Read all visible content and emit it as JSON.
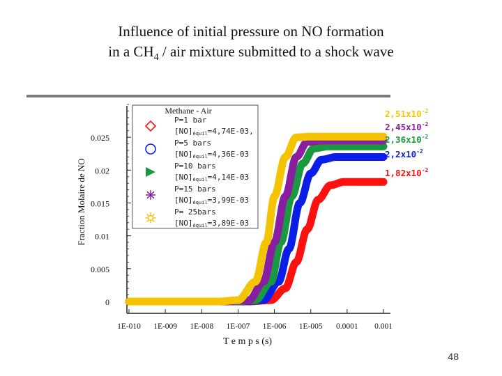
{
  "title_line1": "Influence of initial pressure on NO formation",
  "title_line2_pre": "in a CH",
  "title_line2_sub": "4",
  "title_line2_post": " / air mixture submitted to a shock wave",
  "slide_number": "48",
  "chart_data": {
    "type": "line",
    "xscale": "log",
    "xlabel": "T e m p s  (s)",
    "ylabel": "Fraction Molaire de NO",
    "xlim": [
      1e-10,
      0.001
    ],
    "ylim": [
      0,
      0.03
    ],
    "xticks": [
      "1E-010",
      "1E-009",
      "1E-008",
      "1E-007",
      "1E-006",
      "1E-005",
      "0.0001",
      "0.001"
    ],
    "yticks": [
      "0",
      "0.005",
      "0.01",
      "0.015",
      "0.02",
      "0.025"
    ],
    "legend_title": "Methane - Air",
    "series": [
      {
        "name": "P=1 bar",
        "value_label": "=4,74E-03,",
        "color": "#f5c400",
        "marker": "sun",
        "x": [
          1e-10,
          3e-08,
          1e-07,
          3e-07,
          6e-07,
          1e-06,
          2e-06,
          4e-06,
          1e-05,
          0.001
        ],
        "y": [
          0,
          0,
          0.0002,
          0.003,
          0.009,
          0.016,
          0.022,
          0.025,
          0.0251,
          0.0251
        ]
      },
      {
        "name": "P=5 bars",
        "value_label": "=4,36E-03",
        "color": "#8a1ea0",
        "marker": "asterisk",
        "x": [
          1e-10,
          5e-08,
          2e-07,
          5e-07,
          1e-06,
          2e-06,
          4e-06,
          8e-06,
          2e-05,
          0.001
        ],
        "y": [
          0,
          0,
          0.0002,
          0.003,
          0.009,
          0.016,
          0.022,
          0.0243,
          0.0245,
          0.0245
        ]
      },
      {
        "name": "P=10 bars",
        "value_label": "=4,14E-03",
        "color": "#1a9a40",
        "marker": "triangle",
        "x": [
          1e-10,
          8e-08,
          3e-07,
          8e-07,
          1.5e-06,
          3e-06,
          6e-06,
          1.2e-05,
          3e-05,
          0.001
        ],
        "y": [
          0,
          0,
          0.0002,
          0.003,
          0.009,
          0.016,
          0.021,
          0.0233,
          0.0236,
          0.0236
        ]
      },
      {
        "name": "P=15 bars",
        "value_label": "=3,99E-03",
        "color": "#0a1ee8",
        "marker": "circle",
        "x": [
          1e-10,
          1.2e-07,
          5e-07,
          1.3e-06,
          2.5e-06,
          5e-06,
          1e-05,
          2e-05,
          5e-05,
          0.001
        ],
        "y": [
          0,
          0,
          0.0002,
          0.003,
          0.008,
          0.015,
          0.0195,
          0.0216,
          0.022,
          0.022
        ]
      },
      {
        "name": "P= 25bars",
        "value_label": "=3,89E-03",
        "color": "#ff1010",
        "marker": "diamond",
        "x": [
          1e-10,
          2e-07,
          8e-07,
          2e-06,
          4e-06,
          8e-06,
          1.6e-05,
          3.5e-05,
          8e-05,
          0.001
        ],
        "y": [
          0,
          0,
          0.0002,
          0.002,
          0.006,
          0.011,
          0.0155,
          0.0177,
          0.0182,
          0.0182
        ]
      }
    ],
    "annotations": [
      {
        "text": "2,51x10",
        "exp": "-2",
        "color": "#f5c400",
        "y": 0.0251
      },
      {
        "text": "2,45x10",
        "exp": "-2",
        "color": "#8a1ea0",
        "y": 0.0245
      },
      {
        "text": "2,36x10",
        "exp": "-2",
        "color": "#1a9a40",
        "y": 0.0236
      },
      {
        "text": "2,2x10",
        "exp": "-2",
        "color": "#0a1ee8",
        "y": 0.022
      },
      {
        "text": "1,82x10",
        "exp": "-2",
        "color": "#ff1010",
        "y": 0.0182
      }
    ]
  },
  "colors": {
    "frame_shadow": "#7a7a7a",
    "legend_border": "#555555"
  }
}
